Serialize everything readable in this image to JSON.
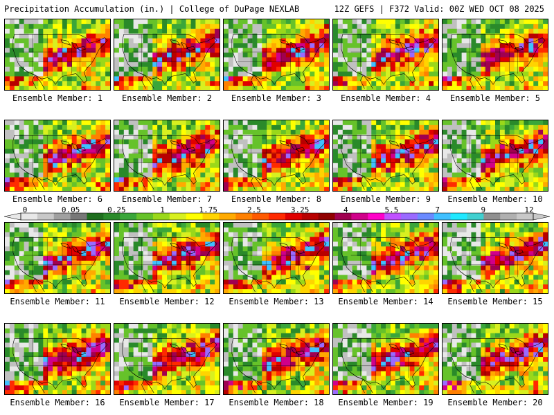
{
  "header": {
    "title_left": "Precipitation Accumulation (in.) | College of DuPage NEXLAB",
    "title_right": "12Z GEFS | F372 Valid: 00Z WED OCT 08 2025"
  },
  "colorbar": {
    "labels": [
      "0",
      "0.05",
      "0.25",
      "1",
      "1.75",
      "2.5",
      "3.25",
      "4",
      "5.5",
      "7",
      "9",
      "12"
    ],
    "colors": [
      "#e8e8e8",
      "#c8c8c8",
      "#a0a0a0",
      "#787878",
      "#1e6e1e",
      "#2a8a2a",
      "#3aa63a",
      "#66c22a",
      "#9ad81a",
      "#d8f020",
      "#ffff00",
      "#ffd400",
      "#ffaa00",
      "#ff8000",
      "#ff5a00",
      "#ff2a00",
      "#e00000",
      "#b80000",
      "#900000",
      "#a00050",
      "#d0008a",
      "#ff00c8",
      "#c050ff",
      "#9a6aff",
      "#6a8aff",
      "#40c0ff",
      "#20e8ff",
      "#40d0d0",
      "#909090",
      "#b0b0b0",
      "#c8c8c8"
    ]
  },
  "members": [
    "Ensemble Member: 1",
    "Ensemble Member: 2",
    "Ensemble Member: 3",
    "Ensemble Member: 4",
    "Ensemble Member: 5",
    "Ensemble Member: 6",
    "Ensemble Member: 7",
    "Ensemble Member: 8",
    "Ensemble Member: 9",
    "Ensemble Member: 10",
    "Ensemble Member: 11",
    "Ensemble Member: 12",
    "Ensemble Member: 13",
    "Ensemble Member: 14",
    "Ensemble Member: 15",
    "Ensemble Member: 16",
    "Ensemble Member: 17",
    "Ensemble Member: 18",
    "Ensemble Member: 19",
    "Ensemble Member: 20"
  ]
}
